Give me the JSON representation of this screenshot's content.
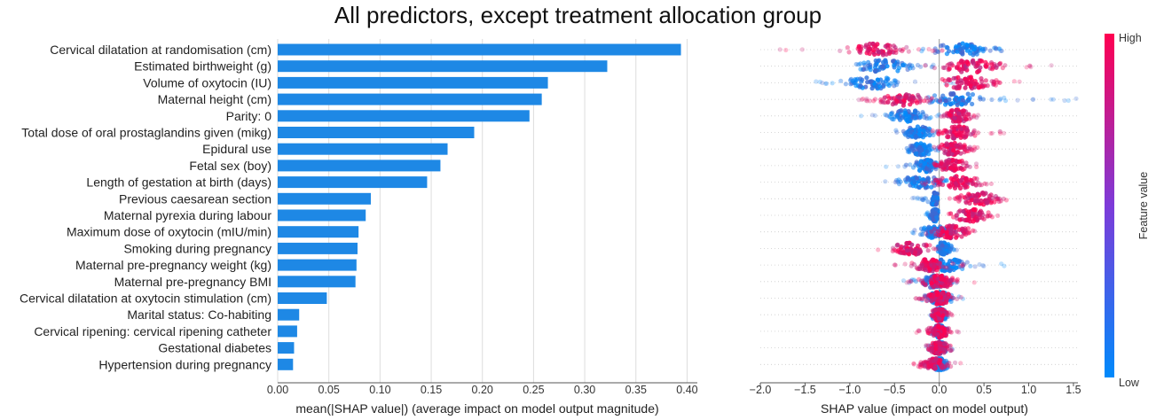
{
  "title": "All predictors, except treatment allocation group",
  "colors": {
    "bar": "#1e88e5",
    "low": "#008afb",
    "high": "#ff0051",
    "grid": "#dddddd"
  },
  "chart_data": [
    {
      "type": "bar",
      "orientation": "horizontal",
      "title": "",
      "xlabel": "mean(|SHAP value|) (average impact on model output magnitude)",
      "ylabel": "",
      "xlim": [
        0,
        0.41
      ],
      "xticks": [
        "0.00",
        "0.05",
        "0.10",
        "0.15",
        "0.20",
        "0.25",
        "0.30",
        "0.35",
        "0.40"
      ],
      "grid": true,
      "categories": [
        "Cervical dilatation at randomisation (cm)",
        "Estimated birthweight (g)",
        "Volume of oxytocin (IU)",
        "Maternal height (cm)",
        "Parity: 0",
        "Total dose of oral prostaglandins given (mikg)",
        "Epidural use",
        "Fetal sex (boy)",
        "Length of gestation at birth (days)",
        "Previous caesarean section",
        "Maternal pyrexia during labour",
        "Maximum dose of oxytocin (mIU/min)",
        "Smoking during pregnancy",
        "Maternal pre-pregnancy weight (kg)",
        "Maternal pre-pregnancy BMI",
        "Cervical dilatation at oxytocin stimulation (cm)",
        "Marital status: Co-habiting",
        "Cervical ripening: cervical ripening catheter",
        "Gestational diabetes",
        "Hypertension during pregnancy"
      ],
      "values": [
        0.394,
        0.322,
        0.264,
        0.258,
        0.246,
        0.192,
        0.166,
        0.159,
        0.146,
        0.091,
        0.086,
        0.079,
        0.078,
        0.077,
        0.076,
        0.048,
        0.021,
        0.019,
        0.016,
        0.015
      ]
    },
    {
      "type": "scatter",
      "subtype": "beeswarm",
      "title": "",
      "xlabel": "SHAP value (impact on model output)",
      "ylabel": "",
      "xlim": [
        -2.0,
        1.55
      ],
      "xticks": [
        "−2.0",
        "−1.5",
        "−1.0",
        "−0.5",
        "0.0",
        "0.5",
        "1.0",
        "1.5"
      ],
      "grid": false,
      "colorbar": {
        "label": "Feature value",
        "high": "High",
        "low": "Low"
      },
      "features": [
        {
          "low": [
            [
              0.25,
              0.55
            ],
            [
              0.05,
              0.7
            ]
          ],
          "high": [
            [
              -0.7,
              0.45
            ],
            [
              -2.0,
              0.1
            ]
          ]
        },
        {
          "low": [
            [
              -0.6,
              0.5
            ],
            [
              -0.9,
              0.0
            ]
          ],
          "high": [
            [
              0.35,
              0.55
            ],
            [
              0.1,
              1.3
            ]
          ]
        },
        {
          "low": [
            [
              -0.75,
              0.45
            ],
            [
              -1.4,
              0.2
            ]
          ],
          "high": [
            [
              0.3,
              0.5
            ],
            [
              0.0,
              0.9
            ]
          ]
        },
        {
          "low": [
            [
              0.2,
              0.55
            ],
            [
              -0.1,
              1.6
            ]
          ],
          "high": [
            [
              -0.4,
              0.4
            ],
            [
              -0.9,
              0.1
            ]
          ]
        },
        {
          "low": [
            [
              -0.35,
              0.3
            ],
            [
              -0.95,
              0.0
            ]
          ],
          "high": [
            [
              0.2,
              0.2
            ],
            [
              0.05,
              0.45
            ]
          ]
        },
        {
          "low": [
            [
              -0.25,
              0.25
            ],
            [
              -0.5,
              0.0
            ]
          ],
          "high": [
            [
              0.2,
              0.3
            ],
            [
              -0.05,
              0.8
            ]
          ]
        },
        {
          "low": [
            [
              -0.2,
              0.2
            ],
            [
              -0.55,
              0.0
            ]
          ],
          "high": [
            [
              0.15,
              0.25
            ],
            [
              0.0,
              0.45
            ]
          ]
        },
        {
          "low": [
            [
              -0.15,
              0.2
            ],
            [
              -0.6,
              0.0
            ]
          ],
          "high": [
            [
              0.15,
              0.25
            ],
            [
              0.0,
              0.5
            ]
          ]
        },
        {
          "low": [
            [
              -0.2,
              0.4
            ],
            [
              -0.6,
              0.1
            ]
          ],
          "high": [
            [
              0.2,
              0.4
            ],
            [
              -0.2,
              0.7
            ]
          ]
        },
        {
          "low": [
            [
              -0.05,
              0.05
            ],
            [
              -0.3,
              0.0
            ]
          ],
          "high": [
            [
              0.45,
              0.35
            ],
            [
              0.1,
              0.8
            ]
          ]
        },
        {
          "low": [
            [
              -0.05,
              0.05
            ],
            [
              -0.15,
              0.0
            ]
          ],
          "high": [
            [
              0.35,
              0.3
            ],
            [
              0.1,
              0.7
            ]
          ]
        },
        {
          "low": [
            [
              -0.05,
              0.25
            ],
            [
              -0.3,
              0.3
            ]
          ],
          "high": [
            [
              0.15,
              0.3
            ],
            [
              -0.2,
              0.5
            ]
          ]
        },
        {
          "low": [
            [
              0.05,
              0.1
            ],
            [
              -0.05,
              0.2
            ]
          ],
          "high": [
            [
              -0.3,
              0.3
            ],
            [
              -0.75,
              0.1
            ]
          ]
        },
        {
          "low": [
            [
              0.1,
              0.3
            ],
            [
              -0.2,
              0.75
            ]
          ],
          "high": [
            [
              -0.1,
              0.25
            ],
            [
              -0.6,
              0.3
            ]
          ]
        },
        {
          "low": [
            [
              -0.05,
              0.25
            ],
            [
              -0.45,
              0.2
            ]
          ],
          "high": [
            [
              0.0,
              0.25
            ],
            [
              -0.4,
              0.4
            ]
          ]
        },
        {
          "low": [
            [
              0.0,
              0.2
            ],
            [
              -0.25,
              0.3
            ]
          ],
          "high": [
            [
              0.0,
              0.2
            ],
            [
              -0.3,
              0.3
            ]
          ]
        },
        {
          "low": [
            [
              0.0,
              0.1
            ],
            [
              -0.1,
              0.1
            ]
          ],
          "high": [
            [
              0.0,
              0.1
            ],
            [
              -0.1,
              0.15
            ]
          ]
        },
        {
          "low": [
            [
              0.0,
              0.08
            ],
            [
              -0.1,
              0.1
            ]
          ],
          "high": [
            [
              0.0,
              0.15
            ],
            [
              -0.3,
              0.25
            ]
          ]
        },
        {
          "low": [
            [
              0.0,
              0.1
            ],
            [
              -0.15,
              0.15
            ]
          ],
          "high": [
            [
              0.0,
              0.15
            ],
            [
              -0.15,
              0.2
            ]
          ]
        },
        {
          "low": [
            [
              0.0,
              0.1
            ],
            [
              -0.1,
              0.1
            ]
          ],
          "high": [
            [
              -0.05,
              0.2
            ],
            [
              -0.3,
              0.25
            ]
          ]
        }
      ]
    }
  ]
}
